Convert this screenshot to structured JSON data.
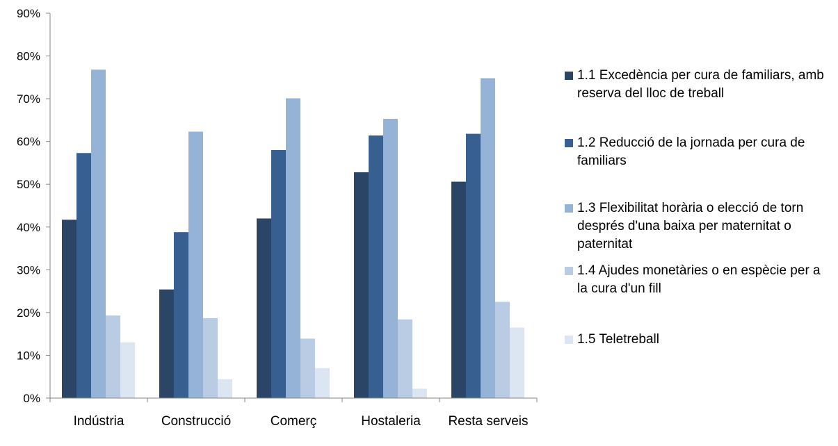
{
  "chart_data": {
    "type": "bar",
    "categories": [
      "Indústria",
      "Construcció",
      "Comerç",
      "Hostaleria",
      "Resta serveis"
    ],
    "series": [
      {
        "name": "1.1 Excedència per cura de familiars, amb reserva del lloc de treball",
        "color": "#2a4566",
        "values": [
          41.7,
          25.4,
          42.0,
          52.8,
          50.6
        ]
      },
      {
        "name": "1.2 Reducció de la jornada per cura de familiars",
        "color": "#375f8f",
        "values": [
          57.3,
          38.8,
          58.0,
          61.4,
          61.8
        ]
      },
      {
        "name": "1.3 Flexibilitat horària o elecció de torn després d'una baixa per maternitat o paternitat",
        "color": "#95b3d7",
        "values": [
          76.8,
          62.3,
          70.1,
          65.3,
          74.8
        ]
      },
      {
        "name": "1.4 Ajudes monetàries o en espècie per a la cura d'un fill",
        "color": "#b9cce4",
        "values": [
          19.3,
          18.7,
          13.9,
          18.4,
          22.5
        ]
      },
      {
        "name": "1.5 Teletreball",
        "color": "#dce6f2",
        "values": [
          13.0,
          4.4,
          7.0,
          2.2,
          16.5
        ]
      }
    ],
    "yticks": [
      "0%",
      "10%",
      "20%",
      "30%",
      "40%",
      "50%",
      "60%",
      "70%",
      "80%",
      "90%"
    ],
    "ylim": [
      0,
      90
    ],
    "grid": false,
    "legend_position": "right",
    "axis_color": "#868686"
  }
}
